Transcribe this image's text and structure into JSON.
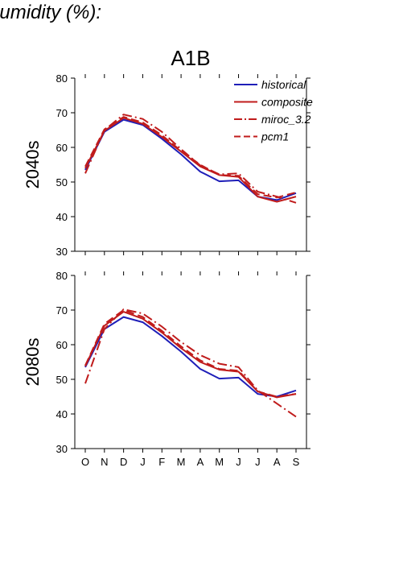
{
  "figure": {
    "title": "humidity (%):",
    "scenario": "A1B"
  },
  "colors": {
    "historical": "#1f1fb8",
    "model": "#c01c1c"
  },
  "chart_data": [
    {
      "type": "line",
      "panel_label": "2040s",
      "categories": [
        "O",
        "N",
        "D",
        "J",
        "F",
        "M",
        "A",
        "M",
        "J",
        "J",
        "A",
        "S"
      ],
      "ylim": [
        30,
        80
      ],
      "yticks": [
        30,
        40,
        50,
        60,
        70,
        80
      ],
      "grid": false,
      "legend_position": "top-right",
      "series": [
        {
          "name": "historical",
          "style": "solid",
          "color": "#1f1fb8",
          "values": [
            53.5,
            64.5,
            68.0,
            66.5,
            62.5,
            58.0,
            53.0,
            50.2,
            50.5,
            45.8,
            44.8,
            46.8
          ]
        },
        {
          "name": "composite",
          "style": "solid",
          "color": "#c01c1c",
          "values": [
            54.0,
            64.8,
            68.5,
            66.8,
            63.0,
            58.8,
            54.5,
            52.0,
            51.5,
            45.8,
            44.3,
            45.8
          ]
        },
        {
          "name": "miroc_3.2",
          "style": "dashdot",
          "color": "#c01c1c",
          "values": [
            52.5,
            65.0,
            69.5,
            68.2,
            64.5,
            59.5,
            54.8,
            52.2,
            52.5,
            47.2,
            45.8,
            44.0
          ]
        },
        {
          "name": "pcm1",
          "style": "longdash",
          "color": "#c01c1c",
          "values": [
            54.5,
            65.2,
            68.8,
            67.2,
            63.5,
            59.0,
            55.0,
            52.0,
            51.8,
            46.5,
            45.5,
            47.0
          ]
        }
      ]
    },
    {
      "type": "line",
      "panel_label": "2080s",
      "categories": [
        "O",
        "N",
        "D",
        "J",
        "F",
        "M",
        "A",
        "M",
        "J",
        "J",
        "A",
        "S"
      ],
      "ylim": [
        30,
        80
      ],
      "yticks": [
        30,
        40,
        50,
        60,
        70,
        80
      ],
      "grid": false,
      "series": [
        {
          "name": "historical",
          "style": "solid",
          "color": "#1f1fb8",
          "values": [
            53.5,
            64.5,
            68.0,
            66.5,
            62.5,
            58.0,
            53.0,
            50.2,
            50.5,
            45.8,
            45.0,
            46.8
          ]
        },
        {
          "name": "composite",
          "style": "solid",
          "color": "#c01c1c",
          "values": [
            53.8,
            65.5,
            69.5,
            67.5,
            63.5,
            59.0,
            55.0,
            52.8,
            52.2,
            46.5,
            44.8,
            45.8
          ]
        },
        {
          "name": "miroc_3.2",
          "style": "dashdot",
          "color": "#c01c1c",
          "values": [
            48.8,
            64.5,
            70.2,
            69.0,
            65.2,
            60.8,
            57.0,
            54.5,
            53.5,
            46.8,
            43.0,
            39.2
          ]
        },
        {
          "name": "pcm1",
          "style": "longdash",
          "color": "#c01c1c",
          "values": [
            54.0,
            66.0,
            70.0,
            68.0,
            64.0,
            59.5,
            55.5,
            53.0,
            52.5,
            46.5,
            45.0,
            45.8
          ]
        }
      ]
    }
  ]
}
